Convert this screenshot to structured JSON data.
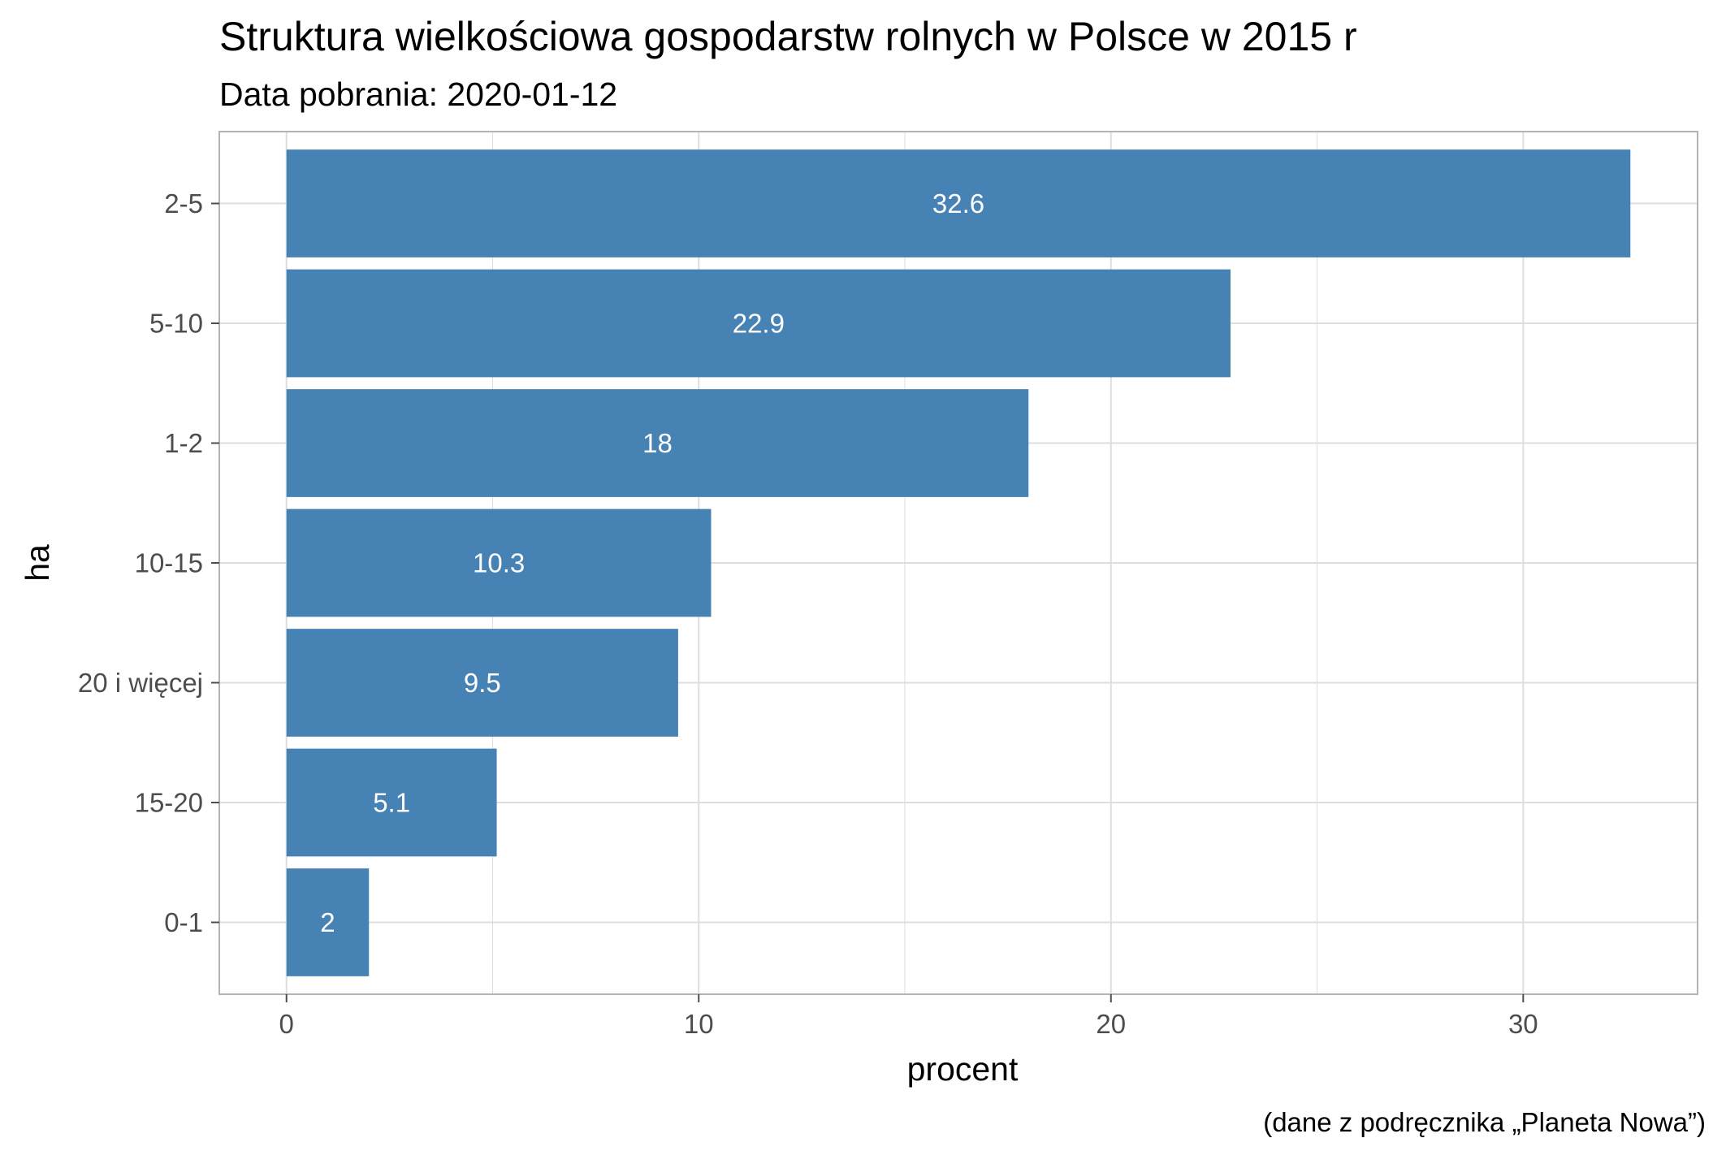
{
  "chart_data": {
    "type": "bar",
    "orientation": "horizontal",
    "title": "Struktura wielkościowa gospodarstw rolnych w Polsce w 2015 r",
    "subtitle": "Data pobrania: 2020-01-12",
    "caption": "(dane z podręcznika „Planeta Nowa”)",
    "xlabel": "procent",
    "ylabel": "ha",
    "categories": [
      "2-5",
      "5-10",
      "1-2",
      "10-15",
      "20 i więcej",
      "15-20",
      "0-1"
    ],
    "values": [
      32.6,
      22.9,
      18,
      10.3,
      9.5,
      5.1,
      2
    ],
    "data_labels": [
      "32.6",
      "22.9",
      "18",
      "10.3",
      "9.5",
      "5.1",
      "2"
    ],
    "xlim": [
      -1.63,
      34.23
    ],
    "x_ticks": [
      0,
      10,
      20,
      30
    ],
    "x_tick_labels": [
      "0",
      "10",
      "20",
      "30"
    ],
    "grid": true,
    "legend": "none",
    "colors": {
      "bar": "#4682B4",
      "grid": "#DEDEDE",
      "panel_border": "#B3B3B3",
      "tick": "#4D4D4D"
    }
  }
}
